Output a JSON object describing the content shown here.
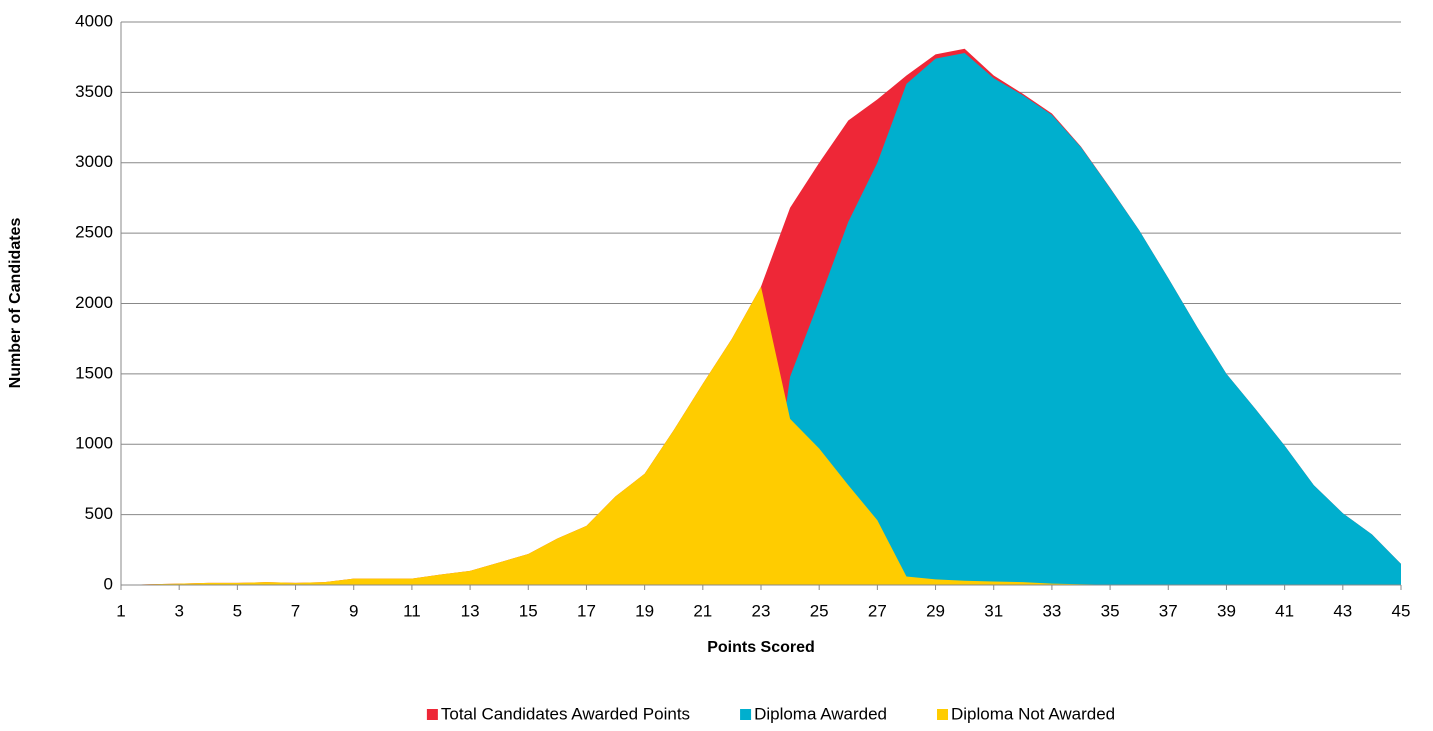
{
  "chart_data": {
    "type": "area",
    "x_label": "Points Scored",
    "y_label": "Number of Candidates",
    "x": [
      1,
      2,
      3,
      4,
      5,
      6,
      7,
      8,
      9,
      10,
      11,
      12,
      13,
      14,
      15,
      16,
      17,
      18,
      19,
      20,
      21,
      22,
      23,
      24,
      25,
      26,
      27,
      28,
      29,
      30,
      31,
      32,
      33,
      34,
      35,
      36,
      37,
      38,
      39,
      40,
      41,
      42,
      43,
      44,
      45
    ],
    "series": [
      {
        "name": "Total Candidates Awarded Points",
        "color": "#ee2737",
        "values": [
          0,
          5,
          10,
          15,
          15,
          20,
          15,
          20,
          45,
          45,
          45,
          75,
          100,
          160,
          220,
          330,
          420,
          630,
          790,
          1100,
          1430,
          1750,
          2120,
          2680,
          3000,
          3300,
          3450,
          3620,
          3770,
          3810,
          3620,
          3490,
          3350,
          3115,
          2822,
          2520,
          2180,
          1830,
          1500,
          1250,
          990,
          710,
          510,
          360,
          150
        ]
      },
      {
        "name": "Diploma Awarded",
        "color": "#00afce",
        "values": [
          0,
          0,
          0,
          0,
          0,
          0,
          0,
          0,
          0,
          0,
          0,
          0,
          0,
          0,
          0,
          0,
          0,
          0,
          0,
          0,
          0,
          0,
          0,
          1480,
          2020,
          2580,
          3000,
          3560,
          3740,
          3780,
          3600,
          3480,
          3340,
          3110,
          2820,
          2520,
          2180,
          1830,
          1500,
          1250,
          990,
          710,
          510,
          360,
          150
        ]
      },
      {
        "name": "Diploma Not Awarded",
        "color": "#ffcc00",
        "values": [
          0,
          5,
          10,
          15,
          15,
          20,
          15,
          20,
          45,
          45,
          45,
          75,
          100,
          160,
          220,
          330,
          420,
          630,
          790,
          1100,
          1430,
          1750,
          2120,
          1180,
          970,
          710,
          460,
          60,
          40,
          30,
          25,
          20,
          10,
          5,
          2,
          0,
          0,
          0,
          0,
          0,
          0,
          0,
          0,
          0,
          0
        ]
      }
    ],
    "xlim": [
      1,
      45
    ],
    "xticks": [
      1,
      3,
      5,
      7,
      9,
      11,
      13,
      15,
      17,
      19,
      21,
      23,
      25,
      27,
      29,
      31,
      33,
      35,
      37,
      39,
      41,
      43,
      45
    ],
    "ylim": [
      0,
      4000
    ],
    "yticks": [
      0,
      500,
      1000,
      1500,
      2000,
      2500,
      3000,
      3500,
      4000
    ],
    "grid": true,
    "legend": "bottom"
  }
}
